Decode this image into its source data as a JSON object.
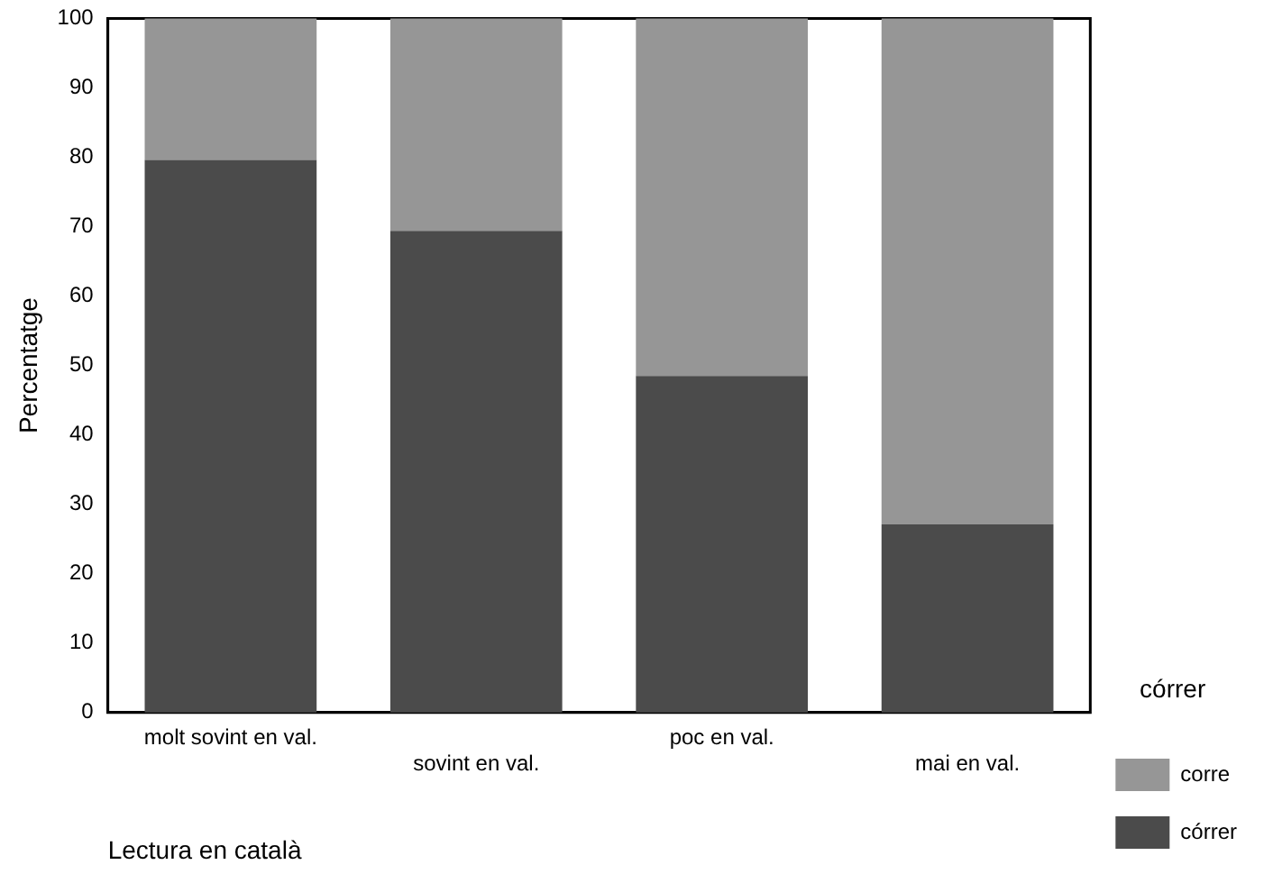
{
  "chart_data": {
    "type": "bar",
    "stacked": true,
    "categories": [
      "molt sovint en val.",
      "sovint en val.",
      "poc en val.",
      "mai en val."
    ],
    "series": [
      {
        "name": "córrer",
        "color": "#4b4b4b",
        "values": [
          79.6,
          69.4,
          48.5,
          27.1
        ]
      },
      {
        "name": "corre",
        "color": "#969696",
        "values": [
          20.4,
          30.6,
          51.5,
          72.9
        ]
      }
    ],
    "xlabel": "Lectura en català",
    "ylabel": "Percentatge",
    "legend_title": "córrer",
    "legend": "right",
    "ylim": [
      0,
      100
    ],
    "yticks": [
      0,
      10,
      20,
      30,
      40,
      50,
      60,
      70,
      80,
      90,
      100
    ],
    "grid": false
  }
}
